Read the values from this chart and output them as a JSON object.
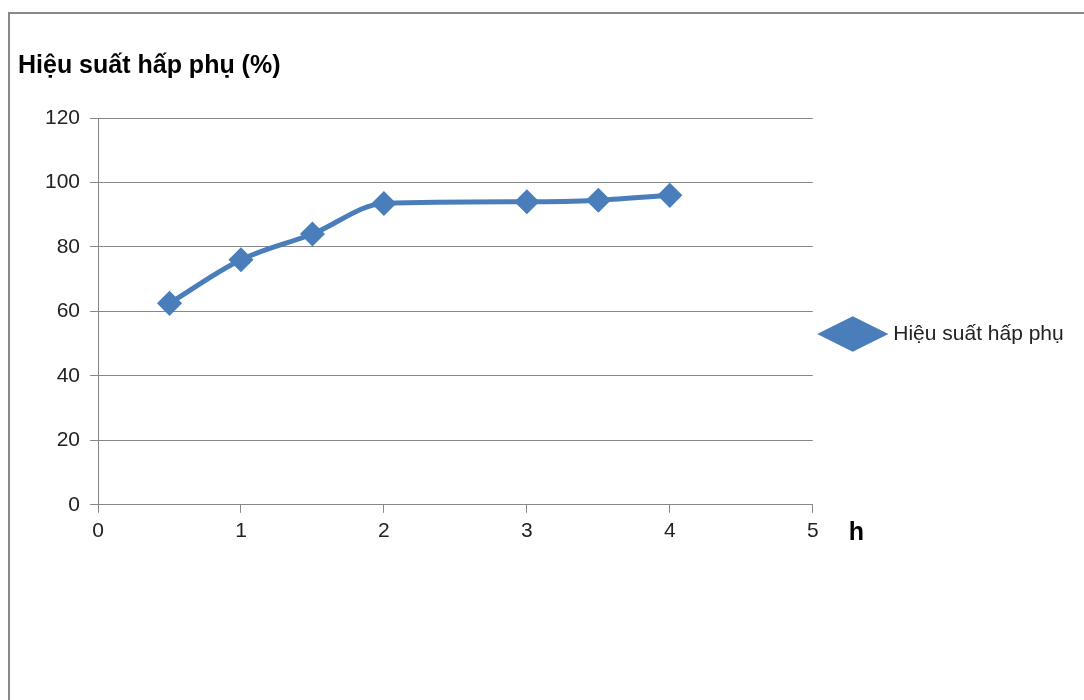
{
  "chart_data": {
    "type": "line",
    "ylabel": "Hiệu suất hấp phụ (%)",
    "xlabel": "h",
    "x": [
      0.5,
      1,
      1.5,
      2,
      3,
      3.5,
      4
    ],
    "series": [
      {
        "name": "Hiệu suất hấp phụ",
        "color": "#4a7ebb",
        "values": [
          62.5,
          76,
          84,
          93.5,
          94,
          94.5,
          96
        ]
      }
    ],
    "xlim": [
      0,
      5
    ],
    "xticks": [
      0,
      1,
      2,
      3,
      4,
      5
    ],
    "ylim": [
      0,
      120
    ],
    "yticks": [
      0,
      20,
      40,
      60,
      80,
      100,
      120
    ],
    "grid": "y",
    "legend": "right",
    "marker": "diamond",
    "line_style": "solid"
  }
}
